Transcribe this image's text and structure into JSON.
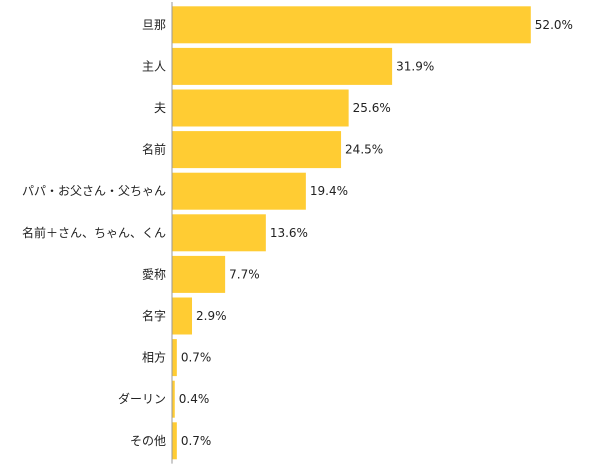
{
  "chart_data": {
    "type": "bar",
    "orientation": "horizontal",
    "title": "",
    "xlabel": "",
    "ylabel": "",
    "categories": [
      "旦那",
      "主人",
      "夫",
      "名前",
      "パパ・お父さん・父ちゃん",
      "名前＋さん、ちゃん、くん",
      "愛称",
      "名字",
      "相方",
      "ダーリン",
      "その他"
    ],
    "values": [
      52.0,
      31.9,
      25.6,
      24.5,
      19.4,
      13.6,
      7.7,
      2.9,
      0.7,
      0.4,
      0.7
    ],
    "value_labels": [
      "52.0%",
      "31.9%",
      "25.6%",
      "24.5%",
      "19.4%",
      "13.6%",
      "7.7%",
      "2.9%",
      "0.7%",
      "0.4%",
      "0.7%"
    ],
    "xlim": [
      0,
      60
    ],
    "grid": false,
    "legend": "none",
    "colors": {
      "bar": "#FFCC33",
      "axis": "#999999",
      "text": "#222222"
    }
  }
}
